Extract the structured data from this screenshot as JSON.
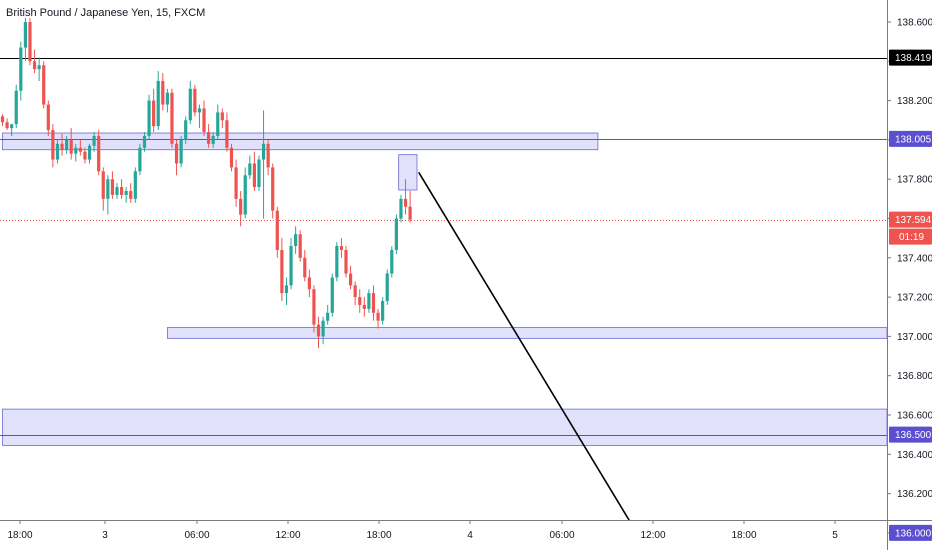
{
  "chart_data": {
    "type": "candlestick",
    "title": "British Pound / Japanese Yen, 15, FXCM",
    "y_ticks": [
      136.0,
      136.2,
      136.4,
      136.6,
      136.8,
      137.0,
      137.2,
      137.4,
      137.6,
      137.8,
      138.0,
      138.2,
      138.4,
      138.6
    ],
    "y_tick_labels": [
      "136.000",
      "136.200",
      "136.400",
      "136.600",
      "136.800",
      "137.000",
      "137.200",
      "137.400",
      "137.600",
      "137.800",
      "138.000",
      "138.200",
      "138.400",
      "138.600"
    ],
    "x_tick_labels": [
      "18:00",
      "3",
      "06:00",
      "12:00",
      "18:00",
      "4",
      "06:00",
      "12:00",
      "18:00",
      "5"
    ],
    "ylim": [
      135.93,
      138.72
    ],
    "colors": {
      "up": "#26a69a",
      "down": "#ef5350",
      "zone_fill": "#dcdcfb",
      "zone_border": "#6a6ad0",
      "hline": "#5b4fcf",
      "price": "#ef5350"
    },
    "horizontal_lines": [
      {
        "value": 138.419,
        "label": "138.419",
        "color": "#000000",
        "badge": "#000000"
      },
      {
        "value": 138.005,
        "label": "138.005",
        "color": "#5b4fcf",
        "badge": "#5b4fcf"
      },
      {
        "value": 136.5,
        "label": "136.500",
        "color": "#5b4fcf",
        "badge": "#5b4fcf"
      },
      {
        "value": 136.0,
        "label": "136.000",
        "color": "#5b4fcf",
        "badge": "#5b4fcf"
      }
    ],
    "current_price": {
      "value": 137.594,
      "label": "137.594",
      "countdown": "01:19"
    },
    "zones": [
      {
        "y1": 137.95,
        "y2": 138.035,
        "x_start": 0,
        "x_end": 130
      },
      {
        "y1": 137.745,
        "y2": 137.925,
        "x_start": 86.5,
        "x_end": 90.5
      },
      {
        "y1": 136.99,
        "y2": 137.045,
        "x_start": 36,
        "x_end": 195
      },
      {
        "y1": 136.445,
        "y2": 136.63,
        "x_start": 0,
        "x_end": 195
      }
    ],
    "projection": {
      "from_index": 90,
      "from_value": 137.835,
      "to_index": 138.5,
      "to_value": 136.0
    },
    "candles": [
      [
        138.12,
        138.13,
        138.07,
        138.09
      ],
      [
        138.09,
        138.11,
        138.05,
        138.06
      ],
      [
        138.06,
        138.08,
        138.02,
        138.08
      ],
      [
        138.08,
        138.28,
        138.06,
        138.25
      ],
      [
        138.25,
        138.5,
        138.2,
        138.47
      ],
      [
        138.47,
        138.62,
        138.4,
        138.6
      ],
      [
        138.6,
        138.62,
        138.38,
        138.4
      ],
      [
        138.4,
        138.46,
        138.34,
        138.36
      ],
      [
        138.36,
        138.42,
        138.3,
        138.38
      ],
      [
        138.38,
        138.4,
        138.16,
        138.18
      ],
      [
        138.18,
        138.2,
        138.02,
        138.05
      ],
      [
        138.05,
        138.08,
        137.86,
        137.9
      ],
      [
        137.9,
        138.0,
        137.88,
        137.98
      ],
      [
        137.98,
        138.03,
        137.92,
        137.95
      ],
      [
        137.95,
        138.02,
        137.93,
        138.0
      ],
      [
        138.0,
        138.06,
        137.9,
        137.93
      ],
      [
        137.93,
        137.98,
        137.89,
        137.96
      ],
      [
        137.96,
        138.0,
        137.92,
        137.94
      ],
      [
        137.94,
        137.96,
        137.88,
        137.9
      ],
      [
        137.9,
        137.98,
        137.88,
        137.97
      ],
      [
        137.97,
        138.04,
        137.94,
        138.02
      ],
      [
        138.02,
        138.05,
        137.82,
        137.84
      ],
      [
        137.84,
        137.86,
        137.64,
        137.7
      ],
      [
        137.7,
        137.82,
        137.62,
        137.8
      ],
      [
        137.8,
        137.84,
        137.7,
        137.72
      ],
      [
        137.72,
        137.78,
        137.7,
        137.76
      ],
      [
        137.76,
        137.8,
        137.7,
        137.72
      ],
      [
        137.72,
        137.76,
        137.68,
        137.74
      ],
      [
        137.74,
        137.78,
        137.68,
        137.7
      ],
      [
        137.7,
        137.86,
        137.68,
        137.84
      ],
      [
        137.84,
        137.98,
        137.82,
        137.96
      ],
      [
        137.96,
        138.04,
        137.94,
        138.02
      ],
      [
        138.02,
        138.23,
        138.0,
        138.2
      ],
      [
        138.2,
        138.26,
        138.04,
        138.07
      ],
      [
        138.07,
        138.35,
        138.05,
        138.3
      ],
      [
        138.3,
        138.34,
        138.15,
        138.18
      ],
      [
        138.18,
        138.26,
        138.14,
        138.24
      ],
      [
        138.24,
        138.26,
        137.96,
        137.98
      ],
      [
        137.98,
        138.0,
        137.82,
        137.88
      ],
      [
        137.88,
        138.02,
        137.86,
        138.0
      ],
      [
        138.0,
        138.12,
        137.98,
        138.1
      ],
      [
        138.1,
        138.3,
        138.08,
        138.26
      ],
      [
        138.26,
        138.28,
        138.12,
        138.14
      ],
      [
        138.14,
        138.18,
        138.06,
        138.16
      ],
      [
        138.16,
        138.2,
        138.02,
        138.04
      ],
      [
        138.04,
        138.08,
        137.96,
        137.98
      ],
      [
        137.98,
        138.04,
        137.96,
        138.02
      ],
      [
        138.02,
        138.18,
        138.0,
        138.14
      ],
      [
        138.14,
        138.16,
        138.06,
        138.1
      ],
      [
        138.1,
        138.14,
        137.94,
        137.96
      ],
      [
        137.96,
        137.98,
        137.84,
        137.86
      ],
      [
        137.86,
        137.9,
        137.66,
        137.7
      ],
      [
        137.7,
        137.74,
        137.56,
        137.62
      ],
      [
        137.62,
        137.86,
        137.6,
        137.82
      ],
      [
        137.82,
        137.92,
        137.8,
        137.88
      ],
      [
        137.88,
        137.94,
        137.74,
        137.76
      ],
      [
        137.76,
        137.92,
        137.74,
        137.9
      ],
      [
        137.9,
        138.15,
        137.6,
        137.98
      ],
      [
        137.98,
        138.0,
        137.82,
        137.86
      ],
      [
        137.86,
        137.88,
        137.6,
        137.64
      ],
      [
        137.64,
        137.66,
        137.4,
        137.44
      ],
      [
        137.44,
        137.5,
        137.18,
        137.22
      ],
      [
        137.22,
        137.3,
        137.16,
        137.26
      ],
      [
        137.26,
        137.5,
        137.24,
        137.46
      ],
      [
        137.46,
        137.56,
        137.42,
        137.52
      ],
      [
        137.52,
        137.54,
        137.38,
        137.4
      ],
      [
        137.4,
        137.44,
        137.28,
        137.3
      ],
      [
        137.3,
        137.34,
        137.2,
        137.24
      ],
      [
        137.24,
        137.26,
        137.02,
        137.06
      ],
      [
        137.06,
        137.1,
        136.94,
        137.0
      ],
      [
        137.0,
        137.1,
        136.96,
        137.08
      ],
      [
        137.08,
        137.16,
        137.06,
        137.12
      ],
      [
        137.12,
        137.32,
        137.1,
        137.3
      ],
      [
        137.3,
        137.48,
        137.28,
        137.46
      ],
      [
        137.46,
        137.5,
        137.4,
        137.44
      ],
      [
        137.44,
        137.46,
        137.3,
        137.32
      ],
      [
        137.32,
        137.36,
        137.24,
        137.26
      ],
      [
        137.26,
        137.28,
        137.16,
        137.2
      ],
      [
        137.2,
        137.24,
        137.12,
        137.16
      ],
      [
        137.16,
        137.2,
        137.1,
        137.14
      ],
      [
        137.14,
        137.24,
        137.12,
        137.22
      ],
      [
        137.22,
        137.26,
        137.08,
        137.12
      ],
      [
        137.12,
        137.14,
        137.04,
        137.08
      ],
      [
        137.08,
        137.2,
        137.06,
        137.18
      ],
      [
        137.18,
        137.34,
        137.16,
        137.32
      ],
      [
        137.32,
        137.46,
        137.3,
        137.44
      ],
      [
        137.44,
        137.62,
        137.42,
        137.6
      ],
      [
        137.6,
        137.72,
        137.58,
        137.7
      ],
      [
        137.7,
        137.8,
        137.62,
        137.66
      ],
      [
        137.66,
        137.74,
        137.58,
        137.594
      ]
    ]
  }
}
